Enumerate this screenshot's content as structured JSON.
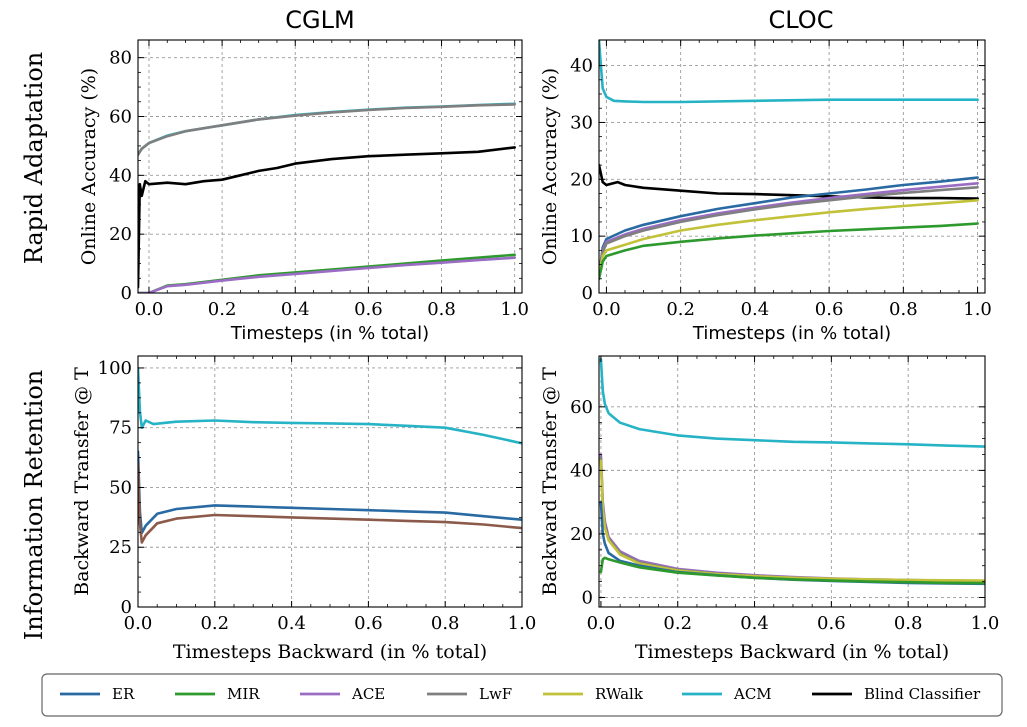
{
  "figure": {
    "row_titles": [
      "Rapid Adaptation",
      "Information Retention"
    ],
    "col_titles": [
      "CGLM",
      "CLOC"
    ]
  },
  "colors": {
    "ER": "#2a6aa3",
    "MIR": "#2e9a2e",
    "ACE": "#9b6cc4",
    "LwF": "#7f7f7f",
    "RWalk": "#c2c23a",
    "ACM": "#27b3c6",
    "Blind Classifier": "#000000",
    "ER_brown": "#8c5a4a"
  },
  "legend": {
    "items": [
      {
        "name": "ER",
        "color": "#2a6aa3"
      },
      {
        "name": "MIR",
        "color": "#2e9a2e"
      },
      {
        "name": "ACE",
        "color": "#9b6cc4"
      },
      {
        "name": "LwF",
        "color": "#7f7f7f"
      },
      {
        "name": "RWalk",
        "color": "#c2c23a"
      },
      {
        "name": "ACM",
        "color": "#27b3c6"
      },
      {
        "name": "Blind Classifier",
        "color": "#000000"
      }
    ]
  },
  "chart_data": [
    {
      "type": "line",
      "panel": "CGLM rapid adaptation",
      "title": "CGLM",
      "xlabel": "Timesteps (in % total)",
      "ylabel": "Online Accuracy (%)",
      "xlim": [
        -0.03,
        1.02
      ],
      "ylim": [
        0,
        86
      ],
      "xticks": [
        0.0,
        0.2,
        0.4,
        0.6,
        0.8,
        1.0
      ],
      "xtick_labels": [
        "0.0",
        "0.2",
        "0.4",
        "0.6",
        "0.8",
        "1.0"
      ],
      "yticks": [
        0,
        20,
        40,
        60,
        80
      ],
      "ytick_labels": [
        "0",
        "20",
        "40",
        "60",
        "80"
      ],
      "grid": true,
      "series": [
        {
          "name": "ACM",
          "x": [
            -0.03,
            -0.02,
            0.0,
            0.05,
            0.1,
            0.2,
            0.3,
            0.4,
            0.5,
            0.6,
            0.7,
            0.8,
            0.9,
            1.0
          ],
          "y": [
            47,
            49,
            51,
            53.5,
            55,
            57,
            59,
            60.5,
            61.5,
            62.3,
            63,
            63.4,
            63.9,
            64.3
          ]
        },
        {
          "name": "LwF",
          "x": [
            -0.03,
            -0.02,
            0.0,
            0.05,
            0.1,
            0.2,
            0.3,
            0.4,
            0.5,
            0.6,
            0.7,
            0.8,
            0.9,
            1.0
          ],
          "y": [
            47,
            49,
            51,
            53.3,
            55,
            57,
            59,
            60.3,
            61.4,
            62.2,
            62.9,
            63.3,
            63.8,
            64.1
          ]
        },
        {
          "name": "Blind Classifier",
          "x": [
            -0.03,
            -0.025,
            -0.02,
            -0.01,
            0.0,
            0.05,
            0.1,
            0.15,
            0.2,
            0.25,
            0.3,
            0.35,
            0.4,
            0.5,
            0.6,
            0.7,
            0.8,
            0.9,
            1.0
          ],
          "y": [
            2,
            37,
            33,
            38,
            37,
            37.5,
            37,
            38,
            38.5,
            40,
            41.5,
            42.5,
            44,
            45.5,
            46.5,
            47,
            47.5,
            48,
            49.5
          ]
        },
        {
          "name": "MIR",
          "x": [
            -0.03,
            0.0,
            0.05,
            0.1,
            0.2,
            0.3,
            0.4,
            0.5,
            0.6,
            0.7,
            0.8,
            0.9,
            1.0
          ],
          "y": [
            0,
            0,
            2.5,
            3,
            4.5,
            6,
            7,
            8,
            9,
            10,
            11,
            12,
            13
          ]
        },
        {
          "name": "ACE",
          "x": [
            -0.03,
            0.0,
            0.05,
            0.1,
            0.2,
            0.3,
            0.4,
            0.5,
            0.6,
            0.7,
            0.8,
            0.9,
            1.0
          ],
          "y": [
            0,
            0,
            2.3,
            2.8,
            4.2,
            5.5,
            6.5,
            7.5,
            8.5,
            9.5,
            10.3,
            11.2,
            12
          ]
        }
      ]
    },
    {
      "type": "line",
      "panel": "CLOC rapid adaptation",
      "title": "CLOC",
      "xlabel": "Timesteps (in % total)",
      "ylabel": "Online Accuracy (%)",
      "xlim": [
        -0.02,
        1.02
      ],
      "ylim": [
        0,
        44.5
      ],
      "xticks": [
        0.0,
        0.2,
        0.4,
        0.6,
        0.8,
        1.0
      ],
      "xtick_labels": [
        "0.0",
        "0.2",
        "0.4",
        "0.6",
        "0.8",
        "1.0"
      ],
      "yticks": [
        0,
        10,
        20,
        30,
        40
      ],
      "ytick_labels": [
        "0",
        "10",
        "20",
        "30",
        "40"
      ],
      "grid": true,
      "series": [
        {
          "name": "ACM",
          "x": [
            -0.02,
            -0.015,
            -0.01,
            0.0,
            0.02,
            0.05,
            0.1,
            0.2,
            0.4,
            0.6,
            0.8,
            1.0
          ],
          "y": [
            44.5,
            40,
            36,
            34.5,
            33.8,
            33.7,
            33.6,
            33.6,
            33.8,
            34,
            34,
            34
          ]
        },
        {
          "name": "Blind Classifier",
          "x": [
            -0.02,
            -0.015,
            -0.01,
            0.0,
            0.03,
            0.05,
            0.1,
            0.2,
            0.3,
            0.4,
            0.5,
            0.6,
            0.7,
            0.8,
            0.9,
            1.0
          ],
          "y": [
            22.5,
            21,
            19.5,
            19,
            19.5,
            19,
            18.5,
            18,
            17.5,
            17.4,
            17.2,
            17,
            16.8,
            16.7,
            16.7,
            16.6
          ]
        },
        {
          "name": "ER",
          "x": [
            -0.02,
            -0.01,
            0.0,
            0.05,
            0.1,
            0.2,
            0.3,
            0.4,
            0.5,
            0.6,
            0.7,
            0.8,
            0.9,
            1.0
          ],
          "y": [
            3,
            8,
            9.5,
            11,
            12,
            13.5,
            14.8,
            15.8,
            16.8,
            17.5,
            18.2,
            19,
            19.6,
            20.3
          ]
        },
        {
          "name": "ACE",
          "x": [
            -0.02,
            -0.01,
            0.0,
            0.05,
            0.1,
            0.2,
            0.3,
            0.4,
            0.5,
            0.6,
            0.7,
            0.8,
            0.9,
            1.0
          ],
          "y": [
            3,
            7.5,
            9,
            10.3,
            11.3,
            12.8,
            14,
            15,
            15.9,
            16.7,
            17.4,
            18.1,
            18.7,
            19.3
          ]
        },
        {
          "name": "LwF",
          "x": [
            -0.02,
            -0.01,
            0.0,
            0.05,
            0.1,
            0.2,
            0.3,
            0.4,
            0.5,
            0.6,
            0.7,
            0.8,
            0.9,
            1.0
          ],
          "y": [
            3,
            7.2,
            8.7,
            10,
            11,
            12.5,
            13.7,
            14.7,
            15.6,
            16.3,
            17,
            17.6,
            18.1,
            18.6
          ]
        },
        {
          "name": "RWalk",
          "x": [
            -0.02,
            -0.01,
            0.0,
            0.05,
            0.1,
            0.2,
            0.3,
            0.4,
            0.5,
            0.6,
            0.7,
            0.8,
            0.9,
            1.0
          ],
          "y": [
            3,
            6.5,
            7.5,
            8.5,
            9.5,
            11,
            12,
            12.8,
            13.5,
            14.2,
            14.8,
            15.3,
            15.8,
            16.3
          ]
        },
        {
          "name": "MIR",
          "x": [
            -0.02,
            -0.01,
            0.0,
            0.05,
            0.1,
            0.2,
            0.3,
            0.4,
            0.5,
            0.6,
            0.7,
            0.8,
            0.9,
            1.0
          ],
          "y": [
            2.5,
            5.5,
            6.5,
            7.5,
            8.3,
            9,
            9.6,
            10.1,
            10.5,
            10.9,
            11.2,
            11.5,
            11.8,
            12.2
          ]
        }
      ]
    },
    {
      "type": "line",
      "panel": "CGLM information retention",
      "xlabel": "Timesteps Backward (in % total)",
      "ylabel": "Backward Transfer @ T",
      "xlim": [
        0,
        1
      ],
      "ylim": [
        0,
        105
      ],
      "xticks": [
        0.0,
        0.2,
        0.4,
        0.6,
        0.8,
        1.0
      ],
      "xtick_labels": [
        "0.0",
        "0.2",
        "0.4",
        "0.6",
        "0.8",
        "1.0"
      ],
      "yticks": [
        0,
        25,
        50,
        75,
        100
      ],
      "ytick_labels": [
        "0",
        "25",
        "50",
        "75",
        "100"
      ],
      "grid": true,
      "series": [
        {
          "name": "ACM",
          "x": [
            0.0,
            0.005,
            0.01,
            0.02,
            0.04,
            0.1,
            0.2,
            0.3,
            0.4,
            0.5,
            0.6,
            0.7,
            0.8,
            0.9,
            1.0
          ],
          "y": [
            100,
            82,
            75,
            78,
            76.5,
            77.5,
            78,
            77.3,
            77,
            76.8,
            76.5,
            75.8,
            75,
            72,
            68.5
          ]
        },
        {
          "name": "ER",
          "x": [
            0.0,
            0.005,
            0.01,
            0.02,
            0.05,
            0.1,
            0.2,
            0.3,
            0.4,
            0.5,
            0.6,
            0.7,
            0.8,
            0.9,
            1.0
          ],
          "y": [
            65,
            40,
            31,
            34,
            39,
            41,
            42.5,
            42,
            41.5,
            41,
            40.5,
            40,
            39.5,
            38,
            36.5
          ]
        },
        {
          "name": "ER_brown",
          "x": [
            0.0,
            0.005,
            0.01,
            0.02,
            0.05,
            0.1,
            0.2,
            0.3,
            0.4,
            0.5,
            0.6,
            0.7,
            0.8,
            0.9,
            1.0
          ],
          "y": [
            60,
            35,
            27,
            30,
            35,
            37,
            38.5,
            38,
            37.5,
            37,
            36.5,
            36,
            35.5,
            34.5,
            33
          ]
        }
      ]
    },
    {
      "type": "line",
      "panel": "CLOC information retention",
      "xlabel": "Timesteps Backward (in % total)",
      "ylabel": "Backward Transfer @ T",
      "xlim": [
        -0.005,
        1
      ],
      "ylim": [
        -3,
        76
      ],
      "xticks": [
        0.0,
        0.2,
        0.4,
        0.6,
        0.8,
        1.0
      ],
      "xtick_labels": [
        "0.0",
        "0.2",
        "0.4",
        "0.6",
        "0.8",
        "1.0"
      ],
      "yticks": [
        0,
        20,
        40,
        60
      ],
      "ytick_labels": [
        "0",
        "20",
        "40",
        "60"
      ],
      "grid": true,
      "series": [
        {
          "name": "ACM",
          "x": [
            0.0,
            0.005,
            0.01,
            0.02,
            0.05,
            0.1,
            0.2,
            0.3,
            0.4,
            0.5,
            0.6,
            0.7,
            0.8,
            0.9,
            1.0
          ],
          "y": [
            75,
            65,
            61,
            58,
            55,
            53,
            51,
            50,
            49.5,
            49,
            48.8,
            48.5,
            48.2,
            47.8,
            47.5
          ]
        },
        {
          "name": "ACE",
          "x": [
            0.0,
            0.005,
            0.01,
            0.02,
            0.05,
            0.1,
            0.2,
            0.3,
            0.4,
            0.5,
            0.6,
            0.7,
            0.8,
            0.9,
            1.0
          ],
          "y": [
            45,
            30,
            24,
            19,
            14.5,
            11.5,
            9,
            7.8,
            7,
            6.4,
            6,
            5.7,
            5.5,
            5.3,
            5.2
          ]
        },
        {
          "name": "LwF",
          "x": [
            0.0,
            0.005,
            0.01,
            0.02,
            0.05,
            0.1,
            0.2,
            0.3,
            0.4,
            0.5,
            0.6,
            0.7,
            0.8,
            0.9,
            1.0
          ],
          "y": [
            44,
            29,
            23,
            18.5,
            14,
            11,
            8.7,
            7.5,
            6.8,
            6.2,
            5.8,
            5.5,
            5.3,
            5.1,
            5.0
          ]
        },
        {
          "name": "RWalk",
          "x": [
            0.0,
            0.005,
            0.01,
            0.02,
            0.05,
            0.1,
            0.2,
            0.3,
            0.4,
            0.5,
            0.6,
            0.7,
            0.8,
            0.9,
            1.0
          ],
          "y": [
            43,
            28,
            22,
            18,
            13.5,
            10.7,
            8.5,
            7.4,
            6.7,
            6.2,
            5.9,
            5.7,
            5.5,
            5.4,
            5.3
          ]
        },
        {
          "name": "ER",
          "x": [
            0.0,
            0.005,
            0.01,
            0.02,
            0.05,
            0.1,
            0.2,
            0.3,
            0.4,
            0.5,
            0.6,
            0.7,
            0.8,
            0.9,
            1.0
          ],
          "y": [
            30,
            20,
            17,
            14,
            11.5,
            10,
            8,
            7,
            6.2,
            5.6,
            5.2,
            4.9,
            4.6,
            4.4,
            4.3
          ]
        },
        {
          "name": "MIR",
          "x": [
            0.0,
            0.005,
            0.01,
            0.02,
            0.05,
            0.1,
            0.2,
            0.3,
            0.4,
            0.5,
            0.6,
            0.7,
            0.8,
            0.9,
            1.0
          ],
          "y": [
            8,
            12,
            12.5,
            12,
            11,
            9.5,
            7.8,
            6.9,
            6.2,
            5.7,
            5.3,
            5.0,
            4.8,
            4.6,
            4.5
          ]
        }
      ]
    }
  ]
}
